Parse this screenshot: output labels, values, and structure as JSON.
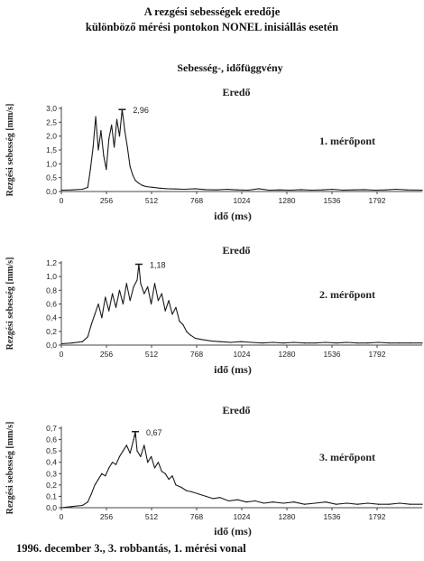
{
  "title_line1": "A rezgési sebességek eredője",
  "title_line2": "különböző mérési pontokon NONEL inisiállás esetén",
  "subtitle": "Sebesség-, időfüggvény",
  "footer": "1996. december 3., 3. robbantás, 1. mérési vonal",
  "colors": {
    "line": "#1a1a1a",
    "axis": "#444444",
    "text": "#222222"
  },
  "chart_data": [
    {
      "type": "line",
      "title": "Eredő",
      "label": "1. mérőpont",
      "xlabel": "idő (ms)",
      "ylabel": "Rezgési sebesség [mm/s]",
      "xlim": [
        0,
        2048
      ],
      "ylim": [
        0,
        3.0
      ],
      "xticks": [
        "0",
        "256",
        "512",
        "768",
        "1024",
        "1280",
        "1536",
        "1792"
      ],
      "yticks": [
        "0,0",
        "0,5",
        "1,0",
        "1,5",
        "2,0",
        "2,5",
        "3,0"
      ],
      "peak": {
        "x": 345,
        "y": 2.96,
        "label": "2,96"
      },
      "series": [
        {
          "x": [
            0,
            60,
            120,
            150,
            165,
            180,
            195,
            210,
            225,
            240,
            255,
            270,
            285,
            300,
            315,
            330,
            345,
            360,
            375,
            390,
            405,
            420,
            440,
            460,
            480,
            520,
            560,
            600,
            650,
            700,
            760,
            820,
            880,
            940,
            1000,
            1060,
            1120,
            1180,
            1240,
            1300,
            1360,
            1420,
            1480,
            1540,
            1600,
            1660,
            1720,
            1780,
            1840,
            1900,
            1960,
            2048
          ],
          "y": [
            0.05,
            0.06,
            0.08,
            0.15,
            0.8,
            1.6,
            2.7,
            1.5,
            2.2,
            1.3,
            0.8,
            1.9,
            2.4,
            1.6,
            2.6,
            2.0,
            2.96,
            2.2,
            1.6,
            0.9,
            0.6,
            0.4,
            0.3,
            0.22,
            0.18,
            0.15,
            0.12,
            0.1,
            0.09,
            0.08,
            0.1,
            0.07,
            0.06,
            0.08,
            0.06,
            0.05,
            0.1,
            0.05,
            0.06,
            0.05,
            0.07,
            0.05,
            0.06,
            0.08,
            0.05,
            0.06,
            0.07,
            0.05,
            0.06,
            0.08,
            0.06,
            0.05
          ]
        }
      ]
    },
    {
      "type": "line",
      "title": "Eredő",
      "label": "2. mérőpont",
      "xlabel": "idő (ms)",
      "ylabel": "Rezgési sebesség [mm/s]",
      "xlim": [
        0,
        2048
      ],
      "ylim": [
        0,
        1.2
      ],
      "xticks": [
        "0",
        "256",
        "512",
        "768",
        "1024",
        "1280",
        "1536",
        "1792"
      ],
      "yticks": [
        "0,0",
        "0,2",
        "0,4",
        "0,6",
        "0,8",
        "1,0",
        "1,2"
      ],
      "peak": {
        "x": 440,
        "y": 1.18,
        "label": "1,18"
      },
      "series": [
        {
          "x": [
            0,
            60,
            120,
            150,
            170,
            190,
            210,
            230,
            250,
            270,
            290,
            310,
            330,
            350,
            370,
            390,
            410,
            430,
            440,
            450,
            470,
            490,
            510,
            530,
            550,
            570,
            590,
            610,
            630,
            650,
            670,
            690,
            710,
            730,
            760,
            800,
            850,
            900,
            960,
            1020,
            1080,
            1140,
            1200,
            1260,
            1320,
            1380,
            1440,
            1500,
            1560,
            1620,
            1680,
            1740,
            1800,
            1860,
            1920,
            1980,
            2048
          ],
          "y": [
            0.02,
            0.03,
            0.05,
            0.12,
            0.3,
            0.45,
            0.6,
            0.4,
            0.7,
            0.5,
            0.75,
            0.55,
            0.8,
            0.6,
            0.9,
            0.65,
            0.85,
            0.95,
            1.18,
            0.9,
            0.75,
            0.85,
            0.6,
            0.9,
            0.65,
            0.75,
            0.5,
            0.65,
            0.45,
            0.55,
            0.35,
            0.3,
            0.2,
            0.15,
            0.1,
            0.08,
            0.06,
            0.05,
            0.04,
            0.05,
            0.04,
            0.03,
            0.04,
            0.03,
            0.04,
            0.03,
            0.03,
            0.04,
            0.03,
            0.04,
            0.03,
            0.03,
            0.04,
            0.03,
            0.03,
            0.03,
            0.03
          ]
        }
      ]
    },
    {
      "type": "line",
      "title": "Eredő",
      "label": "3. mérőpont",
      "xlabel": "idő (ms)",
      "ylabel": "Rezgési sebesség [mm/s]",
      "xlim": [
        0,
        2048
      ],
      "ylim": [
        0,
        0.7
      ],
      "xticks": [
        "0",
        "256",
        "512",
        "768",
        "1024",
        "1280",
        "1536",
        "1792"
      ],
      "yticks": [
        "0,0",
        "0,1",
        "0,2",
        "0,3",
        "0,4",
        "0,5",
        "0,6",
        "0,7"
      ],
      "peak": {
        "x": 420,
        "y": 0.67,
        "label": "0,67"
      },
      "series": [
        {
          "x": [
            0,
            60,
            120,
            150,
            170,
            190,
            210,
            230,
            250,
            270,
            290,
            310,
            330,
            350,
            370,
            390,
            410,
            420,
            430,
            450,
            470,
            490,
            510,
            530,
            550,
            570,
            590,
            610,
            630,
            650,
            680,
            710,
            740,
            780,
            820,
            860,
            900,
            950,
            1000,
            1050,
            1100,
            1150,
            1200,
            1260,
            1320,
            1380,
            1440,
            1500,
            1560,
            1620,
            1680,
            1740,
            1800,
            1860,
            1920,
            1980,
            2048
          ],
          "y": [
            0.0,
            0.01,
            0.02,
            0.05,
            0.12,
            0.2,
            0.25,
            0.3,
            0.28,
            0.35,
            0.4,
            0.38,
            0.45,
            0.5,
            0.55,
            0.48,
            0.6,
            0.67,
            0.5,
            0.45,
            0.55,
            0.4,
            0.45,
            0.35,
            0.4,
            0.32,
            0.3,
            0.25,
            0.28,
            0.2,
            0.18,
            0.15,
            0.14,
            0.12,
            0.1,
            0.08,
            0.09,
            0.06,
            0.07,
            0.05,
            0.06,
            0.04,
            0.05,
            0.04,
            0.05,
            0.03,
            0.04,
            0.05,
            0.03,
            0.04,
            0.03,
            0.04,
            0.03,
            0.03,
            0.04,
            0.03,
            0.03
          ]
        }
      ]
    }
  ]
}
